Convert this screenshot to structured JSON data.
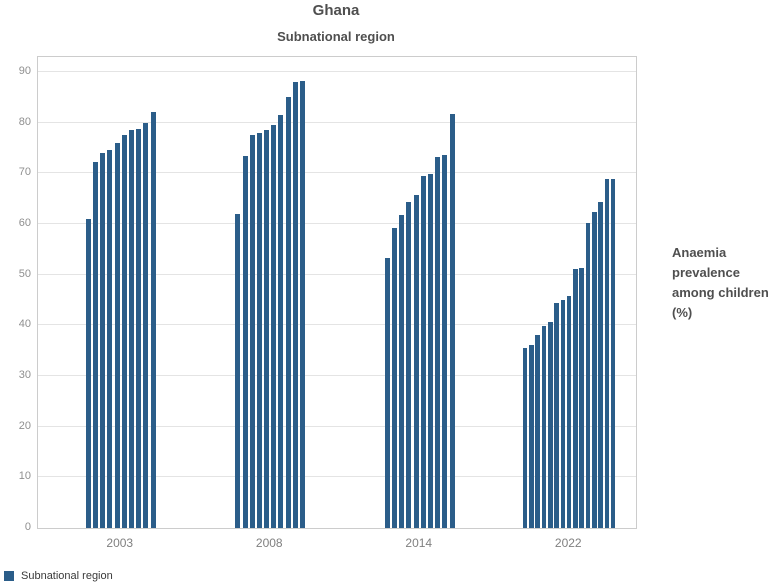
{
  "header": {
    "title": "Ghana",
    "subtitle": "Subnational region"
  },
  "y_axis": {
    "ticks": [
      0,
      10,
      20,
      30,
      40,
      50,
      60,
      70,
      80,
      90
    ],
    "max": 93
  },
  "right_label": {
    "text": "Anaemia prevalence among children (%)",
    "line1": "Anaemia",
    "line2": "prevalence",
    "line3": "among children",
    "line4": "(%)"
  },
  "legend": {
    "label": "Subnational region",
    "color": "#2b5d89"
  },
  "colors": {
    "bar": "#2b5d89",
    "gridline": "#e4e4e4",
    "plot_border": "#cccccc"
  },
  "chart_data": {
    "type": "bar",
    "title": "Ghana",
    "subtitle": "Subnational region",
    "xlabel": "",
    "ylabel": "Anaemia prevalence among children (%)",
    "ylim": [
      0,
      93
    ],
    "grid": "horizontal, every 10 units, 0 to 90",
    "legend_position": "bottom-left",
    "legend_entries": [
      "Subnational region"
    ],
    "bar_color": "#2b5d89",
    "categories": [
      "2003",
      "2008",
      "2014",
      "2022"
    ],
    "series_note": "each group = one survey year; bars are subnational regions sorted ascending",
    "groups": [
      {
        "year": "2003",
        "values": [
          61.1,
          72.2,
          74.1,
          74.6,
          76.1,
          77.7,
          78.5,
          78.7,
          80.0,
          82.1
        ]
      },
      {
        "year": "2008",
        "values": [
          62.1,
          73.5,
          77.7,
          78.0,
          78.6,
          79.6,
          81.6,
          85.2,
          88.0,
          88.2
        ]
      },
      {
        "year": "2014",
        "values": [
          53.4,
          59.3,
          61.8,
          64.3,
          65.7,
          69.5,
          69.9,
          73.3,
          73.6,
          81.7
        ]
      },
      {
        "year": "2022",
        "values": [
          35.5,
          36.2,
          38.1,
          39.9,
          40.6,
          44.4,
          45.1,
          45.8,
          51.1,
          51.3,
          60.3,
          62.3,
          64.3,
          68.9,
          69.0
        ]
      }
    ]
  }
}
